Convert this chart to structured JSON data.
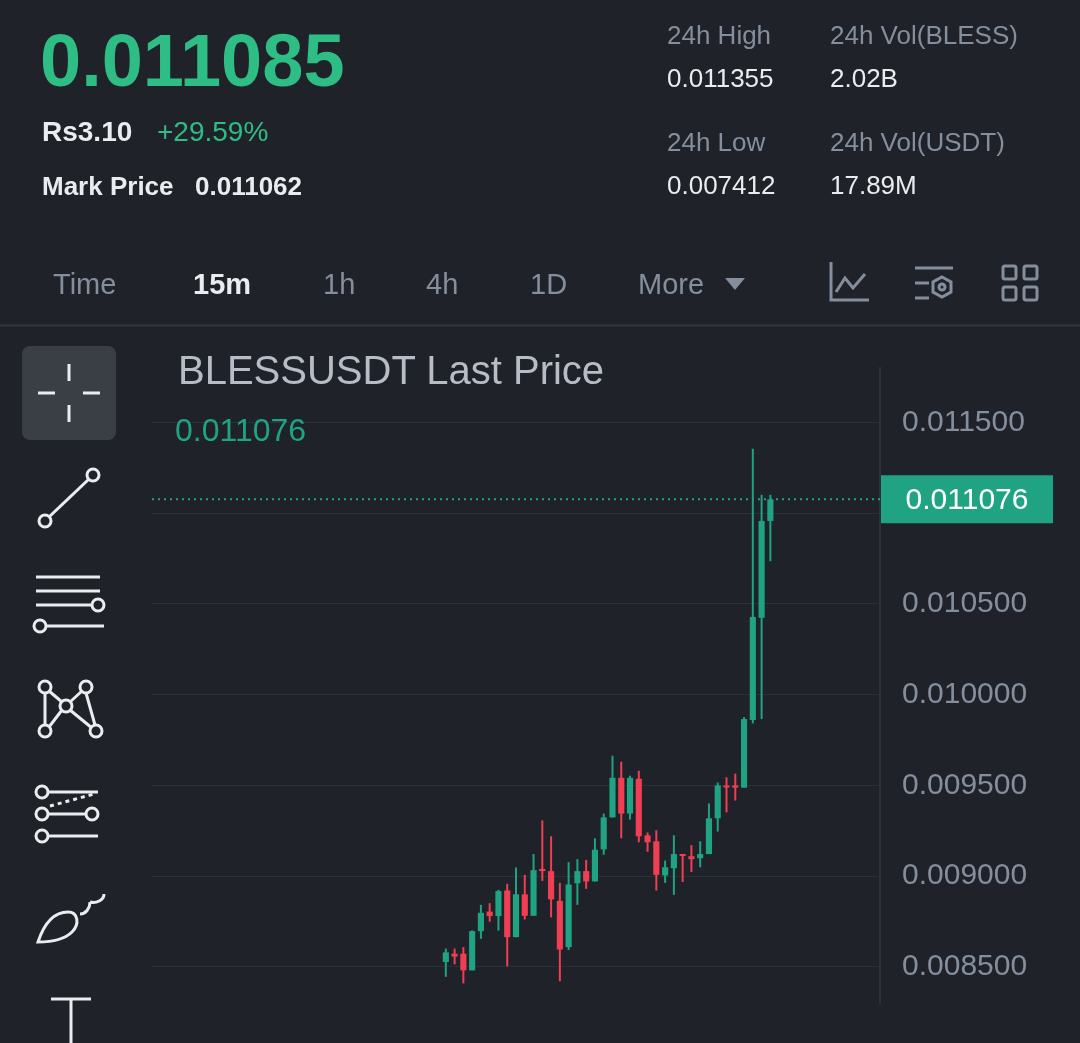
{
  "chart_data": {
    "type": "candlestick",
    "title": "BLESSUSDT Last Price",
    "subtitle": "0.011076",
    "annotations": [
      "0.011085",
      "Rs3.10",
      "+29.59%",
      "Mark Price",
      "0.011062",
      "24h High",
      "0.011355",
      "24h Vol(BLESS)",
      "2.02B",
      "24h Low",
      "0.007412",
      "24h Vol(USDT)",
      "17.89M",
      "Time",
      "15m",
      "1h",
      "4h",
      "1D",
      "More"
    ],
    "categories": [
      null,
      null,
      null,
      null,
      null,
      null,
      null,
      null,
      null,
      null,
      null,
      null,
      null,
      null,
      null,
      null,
      null,
      null,
      null,
      null,
      null,
      null,
      null,
      null,
      null,
      null,
      null,
      null,
      null,
      null,
      null,
      null,
      null,
      null,
      null,
      null,
      null,
      null,
      null,
      null,
      null,
      null,
      null,
      null,
      null,
      null,
      null,
      null,
      null,
      null,
      null,
      null,
      null,
      null,
      null,
      null,
      null,
      null,
      null,
      null,
      null,
      null,
      null,
      null,
      null,
      null,
      null,
      null,
      null,
      null,
      null,
      null,
      null,
      null,
      null,
      null,
      null,
      null,
      null,
      null,
      null,
      null,
      null
    ],
    "ohlc": [
      null,
      null,
      null,
      null,
      null,
      null,
      null,
      null,
      null,
      null,
      null,
      null,
      null,
      null,
      null,
      null,
      null,
      null,
      null,
      null,
      null,
      null,
      null,
      null,
      null,
      null,
      null,
      null,
      null,
      null,
      null,
      null,
      null,
      [
        0.008526,
        0.0086,
        0.008444,
        0.008579
      ],
      [
        0.008572,
        0.0086,
        0.008513,
        0.008556
      ],
      [
        0.008572,
        0.008608,
        0.008408,
        0.00848
      ],
      [
        0.00848,
        0.0087,
        0.00848,
        0.008696
      ],
      [
        0.008696,
        0.008841,
        0.008654,
        0.008797
      ],
      [
        0.008804,
        0.00885,
        0.008748,
        0.008779
      ],
      [
        0.008779,
        0.008924,
        0.008699,
        0.008917
      ],
      [
        0.00892,
        0.008957,
        0.008502,
        0.008663
      ],
      [
        0.008663,
        0.009047,
        0.008663,
        0.008899
      ],
      [
        0.008899,
        0.009006,
        0.00876,
        0.008781
      ],
      [
        0.008781,
        0.009121,
        0.008781,
        0.009032
      ],
      [
        0.009039,
        0.009306,
        0.008973,
        0.009027
      ],
      [
        0.009027,
        0.009219,
        0.008772,
        0.008871
      ],
      [
        0.008863,
        0.008962,
        0.00842,
        0.008595
      ],
      [
        0.008608,
        0.009076,
        0.008592,
        0.008953
      ],
      [
        0.00896,
        0.009093,
        0.008841,
        0.009027
      ],
      [
        0.009027,
        0.009088,
        0.008929,
        0.00897
      ],
      [
        0.00897,
        0.009208,
        0.00897,
        0.009145
      ],
      [
        0.009147,
        0.009344,
        0.009117,
        0.009323
      ],
      [
        0.009323,
        0.009663,
        0.009323,
        0.009541
      ],
      [
        0.009541,
        0.00963,
        0.009208,
        0.009344
      ],
      [
        0.009344,
        0.009553,
        0.009311,
        0.009541
      ],
      [
        0.009536,
        0.00958,
        0.009186,
        0.009219
      ],
      [
        0.009224,
        0.00924,
        0.009134,
        0.009186
      ],
      [
        0.009191,
        0.009252,
        0.00892,
        0.009006
      ],
      [
        0.009003,
        0.009085,
        0.008962,
        0.009048
      ],
      [
        0.009043,
        0.009224,
        0.008896,
        0.009121
      ],
      [
        0.009121,
        0.009121,
        0.008967,
        0.009114
      ],
      [
        0.009109,
        0.00917,
        0.009022,
        0.009093
      ],
      [
        0.009098,
        0.009191,
        0.009048,
        0.009121
      ],
      [
        0.009121,
        0.0094,
        0.009121,
        0.009318
      ],
      [
        0.009318,
        0.009515,
        0.009245,
        0.009499
      ],
      [
        0.009499,
        0.009544,
        0.009351,
        0.009492
      ],
      [
        0.009499,
        0.009564,
        0.009416,
        0.009487
      ],
      [
        0.009487,
        0.009876,
        0.009487,
        0.009865
      ],
      [
        0.00986,
        0.011355,
        0.00984,
        0.010428
      ],
      [
        0.010423,
        0.011101,
        0.009865,
        0.010957
      ],
      [
        0.010957,
        0.011101,
        0.010735,
        0.011076
      ],
      null,
      null,
      null,
      null,
      null,
      null,
      null,
      null,
      null,
      null,
      null,
      null
    ],
    "colors": [
      null,
      null,
      null,
      null,
      null,
      null,
      null,
      null,
      null,
      null,
      null,
      null,
      null,
      null,
      null,
      null,
      null,
      null,
      null,
      null,
      null,
      null,
      null,
      null,
      null,
      null,
      null,
      null,
      null,
      null,
      null,
      null,
      null,
      "#1fa383",
      "#f03e53",
      "#f03e53",
      "#1fa383",
      "#1fa383",
      "#f03e53",
      "#1fa383",
      "#f03e53",
      "#1fa383",
      "#f03e53",
      "#1fa383",
      "#f03e53",
      "#f03e53",
      "#f03e53",
      "#1fa383",
      "#1fa383",
      "#f03e53",
      "#1fa383",
      "#1fa383",
      "#1fa383",
      "#f03e53",
      "#1fa383",
      "#f03e53",
      "#f03e53",
      "#f03e53",
      "#1fa383",
      "#1fa383",
      "#f03e53",
      "#f03e53",
      "#1fa383",
      "#1fa383",
      "#1fa383",
      "#f03e53",
      "#f03e53",
      "#1fa383",
      "#1fa383",
      "#1fa383",
      "#1fa383",
      null,
      null,
      null,
      null,
      null,
      null,
      null,
      null,
      null,
      null,
      null,
      null
    ],
    "ylim": [
      0.0083,
      0.0118
    ],
    "yticks": [
      {
        "value": 0.0085,
        "label": "0.008500"
      },
      {
        "value": 0.009,
        "label": "0.009000"
      },
      {
        "value": 0.0095,
        "label": "0.009500"
      },
      {
        "value": 0.01,
        "label": "0.010000"
      },
      {
        "value": 0.0105,
        "label": "0.010500"
      },
      {
        "value": 0.011,
        "label": null
      },
      {
        "value": 0.0115,
        "label": "0.011500"
      }
    ],
    "ref_lines": [
      {
        "axis": "y",
        "value": 0.011076,
        "label": "0.011076",
        "color": "#1fa383",
        "line_style": "dotted"
      }
    ],
    "grid": "y",
    "legend": false
  }
}
